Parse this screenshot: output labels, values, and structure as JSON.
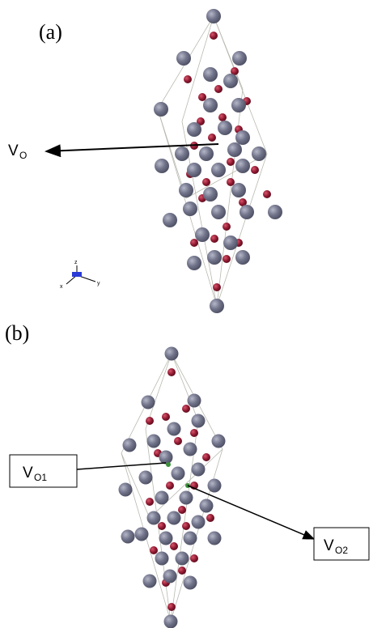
{
  "panel_a": {
    "label": "(a)",
    "vacancy_label": {
      "main": "V",
      "sub": "O"
    },
    "axes": {
      "z": "z",
      "y": "y",
      "x": "x"
    }
  },
  "panel_b": {
    "label": "(b)",
    "vacancy_1": {
      "main": "V",
      "sub": "O1"
    },
    "vacancy_2": {
      "main": "V",
      "sub": "O2"
    }
  }
}
